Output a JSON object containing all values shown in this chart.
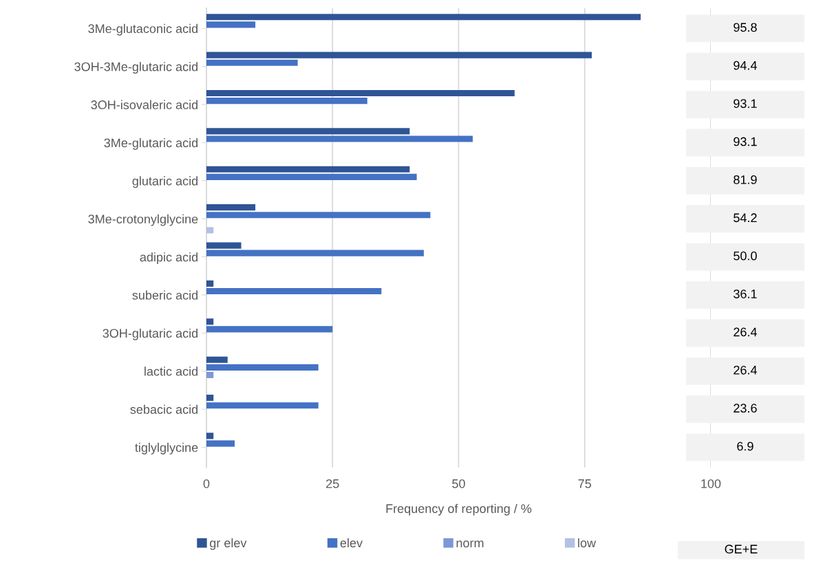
{
  "chart_data": {
    "type": "bar",
    "orientation": "horizontal",
    "xlabel": "Frequency of reporting / %",
    "categories": [
      "3Me-glutaconic acid",
      "3OH-3Me-glutaric acid",
      "3OH-isovaleric acid",
      "3Me-glutaric acid",
      "glutaric acid",
      "3Me-crotonylglycine",
      "adipic acid",
      "suberic acid",
      "3OH-glutaric acid",
      "lactic acid",
      "sebacic acid",
      "tiglylglycine"
    ],
    "series": [
      {
        "name": "gr elev",
        "color": "#2f5597",
        "values": [
          86.1,
          76.4,
          61.1,
          40.3,
          40.3,
          9.7,
          6.9,
          1.4,
          1.4,
          4.2,
          1.4,
          1.4
        ]
      },
      {
        "name": "elev",
        "color": "#4472c4",
        "values": [
          9.7,
          18.1,
          31.9,
          52.8,
          41.7,
          44.4,
          43.1,
          34.7,
          25.0,
          22.2,
          22.2,
          5.6
        ]
      },
      {
        "name": "norm",
        "color": "#7f98d6",
        "values": [
          null,
          null,
          null,
          null,
          null,
          null,
          null,
          null,
          null,
          1.4,
          null,
          null
        ]
      },
      {
        "name": "low",
        "color": "#b4c0e4",
        "values": [
          null,
          null,
          null,
          null,
          null,
          1.4,
          null,
          null,
          null,
          null,
          null,
          null
        ]
      }
    ],
    "xlim": [
      0,
      100
    ],
    "xticks": [
      0,
      25,
      50,
      75,
      100
    ],
    "grid": "x",
    "legend": "bottom",
    "annotations": [
      "GE+E",
      "95.8",
      "94.4",
      "93.1",
      "93.1",
      "81.9",
      "54.2",
      "50.0",
      "36.1",
      "26.4",
      "26.4",
      "23.6",
      "6.9"
    ]
  }
}
